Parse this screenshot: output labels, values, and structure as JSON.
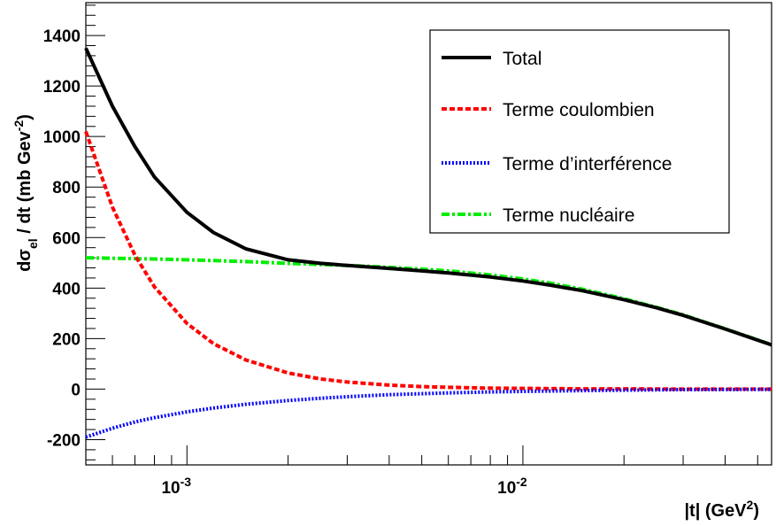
{
  "chart_data": {
    "type": "line",
    "x_scale": "log",
    "xlim": [
      0.0005,
      0.055
    ],
    "ylim": [
      -300,
      1530
    ],
    "grid": false,
    "legend_position": "top-right",
    "xlabel": "|t| (GeV",
    "xlabel_sup": "2",
    "xlabel_end": ")",
    "ylabel": {
      "d": "d",
      "sigma": "σ",
      "sub": "el",
      "mid": " / dt (mb Gev",
      "sup": "-2",
      "end": ")"
    },
    "y_ticks": [
      {
        "value": -200,
        "label": "-200"
      },
      {
        "value": 0,
        "label": "0"
      },
      {
        "value": 200,
        "label": "200"
      },
      {
        "value": 400,
        "label": "400"
      },
      {
        "value": 600,
        "label": "600"
      },
      {
        "value": 800,
        "label": "800"
      },
      {
        "value": 1000,
        "label": "1000"
      },
      {
        "value": 1200,
        "label": "1200"
      },
      {
        "value": 1400,
        "label": "1400"
      }
    ],
    "x_ticks": [
      {
        "value": 0.001,
        "base": "10",
        "exp": "-3"
      },
      {
        "value": 0.01,
        "base": "10",
        "exp": "-2"
      }
    ],
    "series": [
      {
        "name": "Total",
        "color": "#000000",
        "style": "solid",
        "x": [
          0.0005,
          0.0006,
          0.0007,
          0.0008,
          0.001,
          0.0012,
          0.0015,
          0.002,
          0.0025,
          0.003,
          0.004,
          0.005,
          0.006,
          0.008,
          0.01,
          0.012,
          0.015,
          0.02,
          0.025,
          0.03,
          0.04,
          0.055
        ],
        "y": [
          1350,
          1120,
          960,
          840,
          700,
          620,
          555,
          512,
          498,
          490,
          478,
          468,
          460,
          444,
          428,
          412,
          390,
          354,
          322,
          292,
          238,
          175
        ]
      },
      {
        "name": "Terme coulombien",
        "color": "#ff0000",
        "style": "dashed",
        "x": [
          0.0005,
          0.0006,
          0.0007,
          0.0008,
          0.001,
          0.0012,
          0.0015,
          0.002,
          0.0025,
          0.003,
          0.004,
          0.005,
          0.006,
          0.008,
          0.01,
          0.015,
          0.02,
          0.03,
          0.055
        ],
        "y": [
          1020,
          720,
          530,
          405,
          260,
          180,
          115,
          64,
          40,
          28,
          16,
          10,
          7,
          4,
          3,
          1,
          1,
          0,
          0
        ]
      },
      {
        "name": "Terme d’interférence",
        "color": "#0000ff",
        "style": "dotted",
        "x": [
          0.0005,
          0.0006,
          0.0007,
          0.0008,
          0.001,
          0.0012,
          0.0015,
          0.002,
          0.0025,
          0.003,
          0.004,
          0.005,
          0.006,
          0.008,
          0.01,
          0.015,
          0.02,
          0.03,
          0.055
        ],
        "y": [
          -190,
          -155,
          -130,
          -113,
          -90,
          -75,
          -60,
          -45,
          -36,
          -30,
          -22,
          -18,
          -15,
          -11,
          -9,
          -6,
          -4,
          -2,
          -1
        ]
      },
      {
        "name": "Terme nucléaire",
        "color": "#00ee00",
        "style": "dashdot",
        "x": [
          0.0005,
          0.0008,
          0.001,
          0.0015,
          0.002,
          0.003,
          0.004,
          0.005,
          0.006,
          0.008,
          0.01,
          0.012,
          0.015,
          0.02,
          0.025,
          0.03,
          0.04,
          0.055
        ],
        "y": [
          520,
          515,
          512,
          505,
          498,
          490,
          482,
          475,
          468,
          452,
          436,
          420,
          396,
          358,
          324,
          294,
          239,
          176
        ]
      }
    ]
  }
}
